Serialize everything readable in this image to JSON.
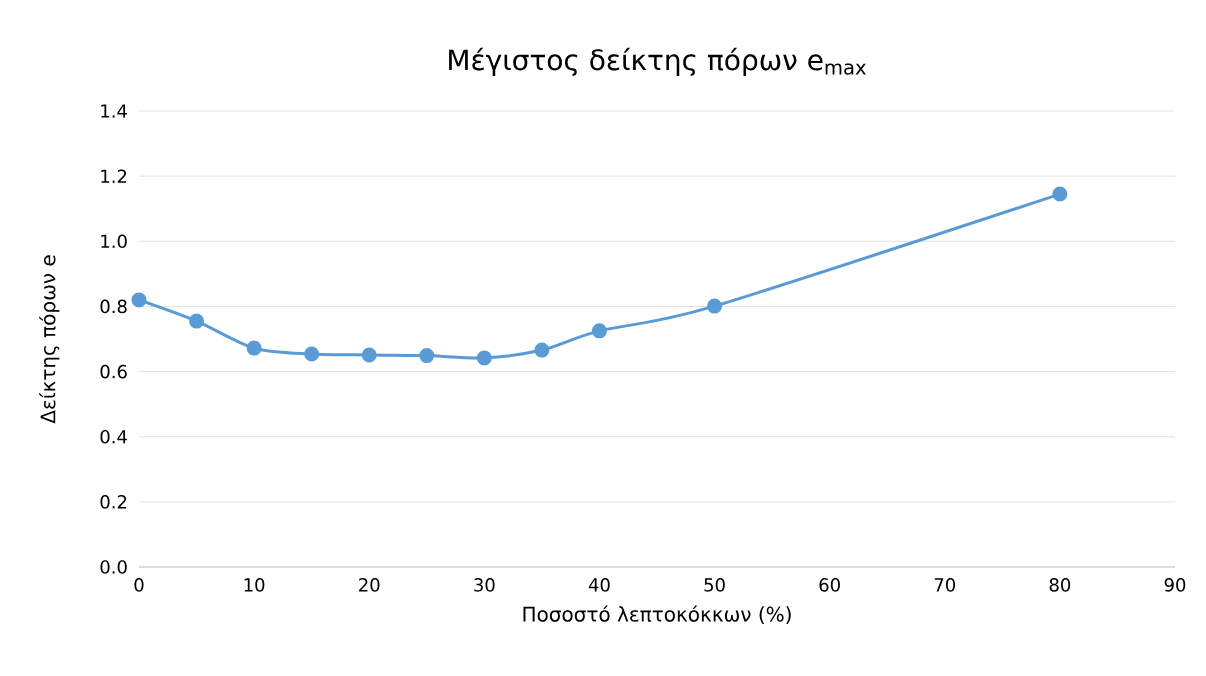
{
  "chart_data": {
    "type": "line",
    "title": "Μέγιστος δείκτης πόρων e$_{max}$",
    "xlabel": "Ποσοστό λεπτοκόκκων (%)",
    "ylabel": "Δείκτης πόρων e",
    "x": [
      0,
      5,
      10,
      15,
      20,
      25,
      30,
      35,
      40,
      50,
      80
    ],
    "series": [
      {
        "color": "#5b9bd5",
        "values": [
          0.82,
          0.755,
          0.672,
          0.654,
          0.651,
          0.649,
          0.642,
          0.666,
          0.725,
          0.801,
          1.145
        ]
      }
    ],
    "xlim": [
      0,
      90
    ],
    "xticks": [
      0,
      10,
      20,
      30,
      40,
      50,
      60,
      70,
      80,
      90
    ],
    "ylim": [
      0,
      1.4
    ],
    "yticks": [
      {
        "value": 0,
        "label": "0.0"
      },
      0.2,
      0.4,
      0.6,
      0.8,
      {
        "value": 1.0,
        "label": "1.0"
      },
      1.2,
      1.4
    ],
    "grid": "y",
    "marker": "circle",
    "line_style": "solid"
  }
}
